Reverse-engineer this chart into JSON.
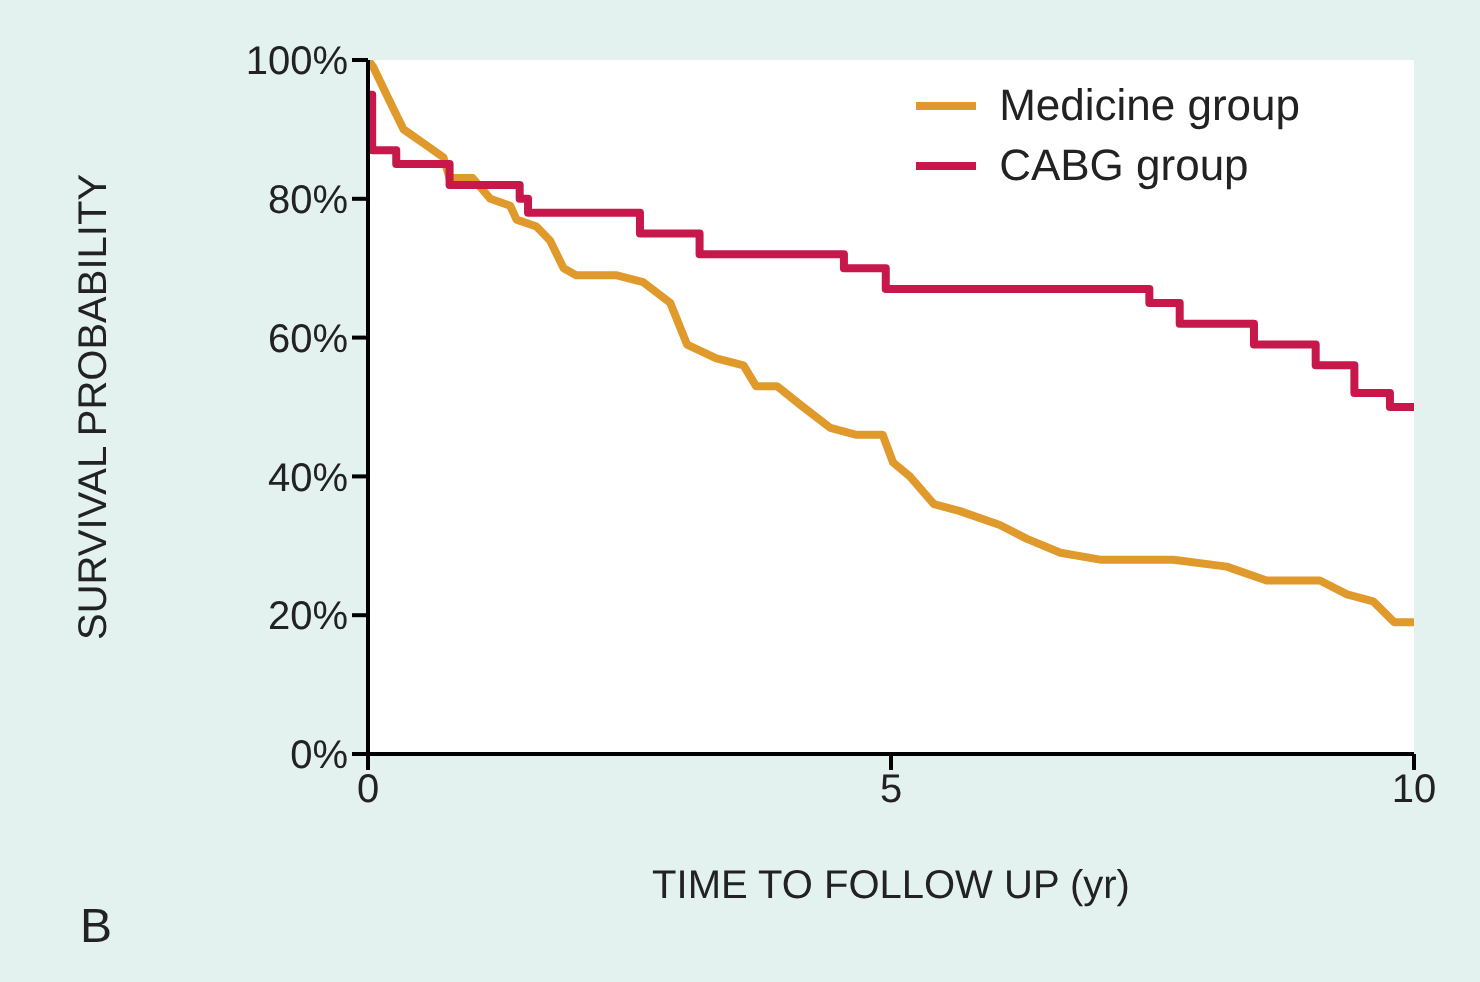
{
  "chart_data": {
    "type": "line",
    "xlabel": "TIME TO FOLLOW UP (yr)",
    "ylabel": "SURVIVAL PROBABILITY",
    "annotations": [
      "B"
    ],
    "xlim": [
      0,
      10
    ],
    "xticks": [
      0,
      5,
      10
    ],
    "ylim": [
      0,
      100
    ],
    "yticks": [
      {
        "value": 0,
        "label": "0%"
      },
      {
        "value": 20,
        "label": "20%"
      },
      {
        "value": 40,
        "label": "40%"
      },
      {
        "value": 60,
        "label": "60%"
      },
      {
        "value": 80,
        "label": "80%"
      },
      {
        "value": 100,
        "label": "100%"
      }
    ],
    "legend": "top right",
    "marker": "none",
    "line_style": "solid",
    "series": [
      {
        "name": "Medicine group",
        "color": "#e09a2c",
        "x": [
          0,
          0.05,
          0.21,
          0.34,
          0.53,
          0.72,
          0.78,
          1.0,
          1.17,
          1.36,
          1.42,
          1.61,
          1.74,
          1.87,
          1.99,
          2.37,
          2.63,
          2.89,
          3.05,
          3.33,
          3.59,
          3.71,
          3.91,
          4.16,
          4.42,
          4.67,
          4.92,
          5.02,
          5.18,
          5.41,
          5.66,
          6.04,
          6.3,
          6.62,
          7.0,
          7.7,
          8.21,
          8.59,
          9.1,
          9.36,
          9.61,
          9.81,
          10
        ],
        "values": [
          100,
          99,
          94,
          90,
          88,
          86,
          83,
          83,
          80,
          79,
          77,
          76,
          74,
          70,
          69,
          69,
          68,
          65,
          59,
          57,
          56,
          53,
          53,
          50,
          47,
          46,
          46,
          42,
          40,
          36,
          35,
          33,
          31,
          29,
          28,
          28,
          27,
          25,
          25,
          23,
          22,
          19,
          19
        ]
      },
      {
        "name": "CABG group",
        "color": "#c8174a",
        "type": "step",
        "x": [
          0,
          0.04,
          0.27,
          0.78,
          1.45,
          1.53,
          2.6,
          3.17,
          4.55,
          4.95,
          7.47,
          7.76,
          8.47,
          9.06,
          9.43,
          9.77,
          10
        ],
        "values": [
          95,
          87,
          85,
          82,
          80,
          78,
          75,
          72,
          70,
          67,
          65,
          62,
          59,
          56,
          52,
          50,
          50
        ]
      }
    ]
  }
}
